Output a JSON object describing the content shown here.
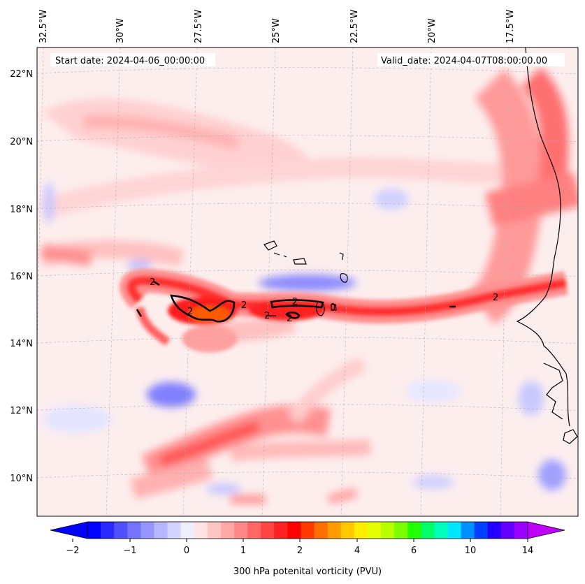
{
  "map": {
    "start_date": "Start date: 2024-04-06_00:00:00",
    "valid_date": "Valid_date: 2024-04-07T08:00:00.00",
    "lon_labels": [
      "32.5°W",
      "30°W",
      "27.5°W",
      "25°W",
      "22.5°W",
      "20°W",
      "17.5°W"
    ],
    "lat_labels": [
      "22°N",
      "20°N",
      "18°N",
      "16°N",
      "14°N",
      "12°N",
      "10°N"
    ],
    "contour_labels": [
      "2",
      "2",
      "2",
      "2",
      "2",
      "2",
      "0",
      "2"
    ]
  },
  "colorbar": {
    "label": "300 hPa potenital vorticity (PVU)",
    "tick_labels": [
      "−2",
      "−1",
      "0",
      "1",
      "2",
      "4",
      "6",
      "10",
      "14"
    ],
    "colors": [
      "#0000ff",
      "#2a2aff",
      "#5050ff",
      "#7474ff",
      "#9696ff",
      "#b6b6ff",
      "#d4d4ff",
      "#eeeeff",
      "#ffe2e2",
      "#ffc6c6",
      "#ffa8a8",
      "#ff8888",
      "#ff6666",
      "#ff4444",
      "#ff2222",
      "#ff0000",
      "#ff3a00",
      "#ff6e00",
      "#ff9c00",
      "#ffc800",
      "#ffee00",
      "#e6ff00",
      "#b8ff00",
      "#7dff00",
      "#22ff00",
      "#00ff66",
      "#00ffbb",
      "#00e6ff",
      "#0090ff",
      "#0040ff",
      "#2600ff",
      "#6400ff",
      "#9a00ff"
    ],
    "under_color": "#0000ff",
    "over_color": "#c000ff"
  }
}
